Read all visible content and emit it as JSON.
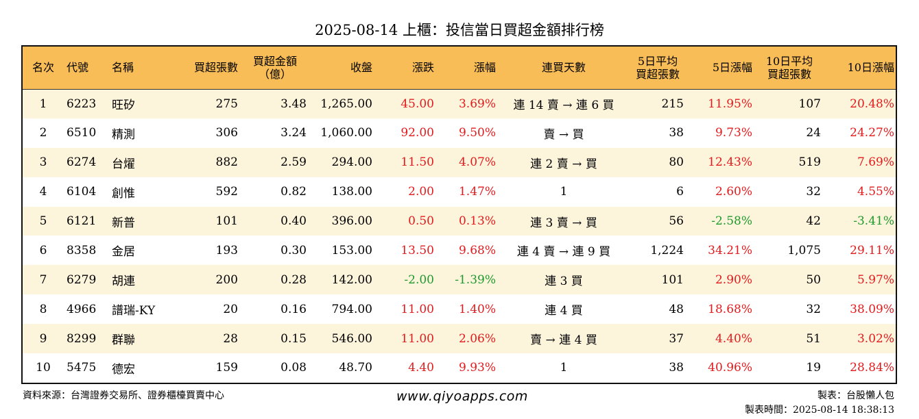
{
  "title": "2025-08-14 上櫃：投信當日買超金額排行榜",
  "headers": {
    "rank": "名次",
    "code": "代號",
    "name": "名稱",
    "buy_lots": "買超張數",
    "buy_amount_l1": "買超金額",
    "buy_amount_l2": "（億）",
    "close": "收盤",
    "change": "漲跌",
    "change_pct": "漲幅",
    "streak": "連買天數",
    "avg5_l1": "5日平均",
    "avg5_l2": "買超張數",
    "pct5": "5日漲幅",
    "avg10_l1": "10日平均",
    "avg10_l2": "買超張數",
    "pct10": "10日漲幅"
  },
  "rows": [
    {
      "rank": "1",
      "code": "6223",
      "name": "旺矽",
      "lots": "275",
      "amount": "3.48",
      "close": "1,265.00",
      "change": "45.00",
      "change_pct": "3.69%",
      "streak": "連 14 賣 → 連 6 買",
      "avg5": "215",
      "pct5": "11.95%",
      "avg10": "107",
      "pct10": "20.48%",
      "change_dir": "up",
      "pct5_dir": "up",
      "pct10_dir": "up"
    },
    {
      "rank": "2",
      "code": "6510",
      "name": "精測",
      "lots": "306",
      "amount": "3.24",
      "close": "1,060.00",
      "change": "92.00",
      "change_pct": "9.50%",
      "streak": "賣 → 買",
      "avg5": "38",
      "pct5": "9.73%",
      "avg10": "24",
      "pct10": "24.27%",
      "change_dir": "up",
      "pct5_dir": "up",
      "pct10_dir": "up"
    },
    {
      "rank": "3",
      "code": "6274",
      "name": "台燿",
      "lots": "882",
      "amount": "2.59",
      "close": "294.00",
      "change": "11.50",
      "change_pct": "4.07%",
      "streak": "連 2 賣 → 買",
      "avg5": "80",
      "pct5": "12.43%",
      "avg10": "519",
      "pct10": "7.69%",
      "change_dir": "up",
      "pct5_dir": "up",
      "pct10_dir": "up"
    },
    {
      "rank": "4",
      "code": "6104",
      "name": "創惟",
      "lots": "592",
      "amount": "0.82",
      "close": "138.00",
      "change": "2.00",
      "change_pct": "1.47%",
      "streak": "1",
      "avg5": "6",
      "pct5": "2.60%",
      "avg10": "32",
      "pct10": "4.55%",
      "change_dir": "up",
      "pct5_dir": "up",
      "pct10_dir": "up"
    },
    {
      "rank": "5",
      "code": "6121",
      "name": "新普",
      "lots": "101",
      "amount": "0.40",
      "close": "396.00",
      "change": "0.50",
      "change_pct": "0.13%",
      "streak": "連 3 賣 → 買",
      "avg5": "56",
      "pct5": "-2.58%",
      "avg10": "42",
      "pct10": "-3.41%",
      "change_dir": "up",
      "pct5_dir": "down",
      "pct10_dir": "down"
    },
    {
      "rank": "6",
      "code": "8358",
      "name": "金居",
      "lots": "193",
      "amount": "0.30",
      "close": "153.00",
      "change": "13.50",
      "change_pct": "9.68%",
      "streak": "連 4 賣 → 連 9 買",
      "avg5": "1,224",
      "pct5": "34.21%",
      "avg10": "1,075",
      "pct10": "29.11%",
      "change_dir": "up",
      "pct5_dir": "up",
      "pct10_dir": "up"
    },
    {
      "rank": "7",
      "code": "6279",
      "name": "胡連",
      "lots": "200",
      "amount": "0.28",
      "close": "142.00",
      "change": "-2.00",
      "change_pct": "-1.39%",
      "streak": "連 3 買",
      "avg5": "101",
      "pct5": "2.90%",
      "avg10": "50",
      "pct10": "5.97%",
      "change_dir": "down",
      "pct5_dir": "up",
      "pct10_dir": "up"
    },
    {
      "rank": "8",
      "code": "4966",
      "name": "譜瑞-KY",
      "lots": "20",
      "amount": "0.16",
      "close": "794.00",
      "change": "11.00",
      "change_pct": "1.40%",
      "streak": "連 4 買",
      "avg5": "48",
      "pct5": "18.68%",
      "avg10": "32",
      "pct10": "38.09%",
      "change_dir": "up",
      "pct5_dir": "up",
      "pct10_dir": "up"
    },
    {
      "rank": "9",
      "code": "8299",
      "name": "群聯",
      "lots": "28",
      "amount": "0.15",
      "close": "546.00",
      "change": "11.00",
      "change_pct": "2.06%",
      "streak": "賣 → 連 4 買",
      "avg5": "37",
      "pct5": "4.40%",
      "avg10": "51",
      "pct10": "3.02%",
      "change_dir": "up",
      "pct5_dir": "up",
      "pct10_dir": "up"
    },
    {
      "rank": "10",
      "code": "5475",
      "name": "德宏",
      "lots": "159",
      "amount": "0.08",
      "close": "48.70",
      "change": "4.40",
      "change_pct": "9.93%",
      "streak": "1",
      "avg5": "38",
      "pct5": "40.96%",
      "avg10": "19",
      "pct10": "28.84%",
      "change_dir": "up",
      "pct5_dir": "up",
      "pct10_dir": "up"
    }
  ],
  "footer": {
    "source": "資料來源：台灣證券交易所、證券櫃檯買賣中心",
    "website": "www.qiyoapps.com",
    "maker": "製表：台股懶人包",
    "made_time": "製表時間：2025-08-14 18:38:13"
  },
  "colors": {
    "header_bg": "#f8bd57",
    "stripe_bg": "#fdf4dc",
    "up": "#e31a1c",
    "down": "#1d9a2c"
  }
}
